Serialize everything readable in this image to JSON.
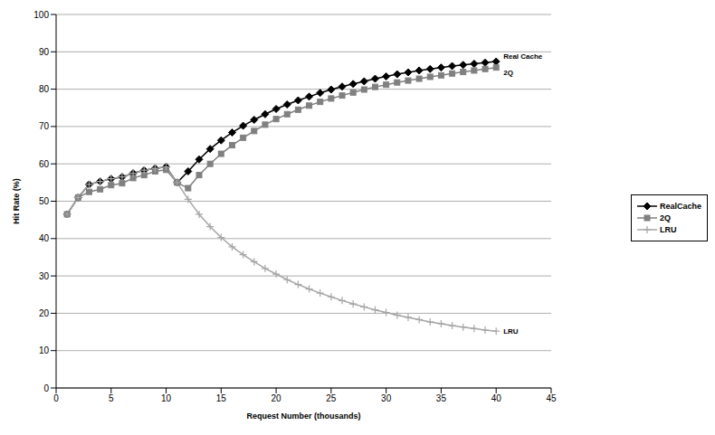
{
  "chart_data": {
    "type": "line",
    "x_label": "Request Number (thousands)",
    "y_label": "Hit Rate (%)",
    "x": [
      1,
      2,
      3,
      4,
      5,
      6,
      7,
      8,
      9,
      10,
      11,
      12,
      13,
      14,
      15,
      16,
      17,
      18,
      19,
      20,
      21,
      22,
      23,
      24,
      25,
      26,
      27,
      28,
      29,
      30,
      31,
      32,
      33,
      34,
      35,
      36,
      37,
      38,
      39,
      40
    ],
    "series": [
      {
        "name": "RealCache",
        "color": "#000000",
        "marker": "diamond",
        "values": [
          46.5,
          51,
          54.5,
          55.3,
          56,
          56.5,
          57.5,
          58.3,
          58.8,
          59.2,
          55,
          58,
          61.2,
          64,
          66.3,
          68.4,
          70.2,
          71.8,
          73.3,
          74.7,
          75.9,
          77,
          78,
          79,
          79.9,
          80.7,
          81.4,
          82.1,
          82.8,
          83.4,
          84,
          84.5,
          85,
          85.4,
          85.8,
          86.2,
          86.5,
          86.8,
          87.1,
          87.4
        ]
      },
      {
        "name": "2Q",
        "color": "#808080",
        "marker": "square",
        "values": [
          46.5,
          51,
          52.5,
          53.2,
          54.3,
          54.8,
          56.2,
          57,
          58,
          58.4,
          55,
          53.5,
          57,
          60,
          62.7,
          65,
          67,
          68.8,
          70.5,
          72,
          73.3,
          74.5,
          75.6,
          76.6,
          77.5,
          78.3,
          79.1,
          79.9,
          80.6,
          81.2,
          81.8,
          82.3,
          82.8,
          83.3,
          83.7,
          84.2,
          84.6,
          85,
          85.4,
          85.8
        ]
      },
      {
        "name": "LRU",
        "color": "#a6a6a6",
        "marker": "plus",
        "values": [
          46.5,
          51,
          54.5,
          55.3,
          56,
          56.5,
          57.5,
          58.3,
          58.8,
          59.2,
          55,
          50.5,
          46.5,
          43.2,
          40.3,
          37.8,
          35.7,
          33.8,
          32,
          30.5,
          29,
          27.7,
          26.5,
          25.4,
          24.4,
          23.4,
          22.5,
          21.7,
          20.9,
          20.2,
          19.5,
          18.9,
          18.3,
          17.7,
          17.2,
          16.7,
          16.3,
          15.9,
          15.5,
          15.2
        ]
      }
    ],
    "annotations": [
      "Real Cache",
      "2Q",
      "LRU"
    ],
    "xlim": [
      0,
      45
    ],
    "xticks": [
      0,
      5,
      10,
      15,
      20,
      25,
      30,
      35,
      40,
      45
    ],
    "ylim": [
      0,
      100
    ],
    "yticks": [
      0,
      10,
      20,
      30,
      40,
      50,
      60,
      70,
      80,
      90,
      100
    ],
    "grid": true,
    "legend": "right"
  }
}
